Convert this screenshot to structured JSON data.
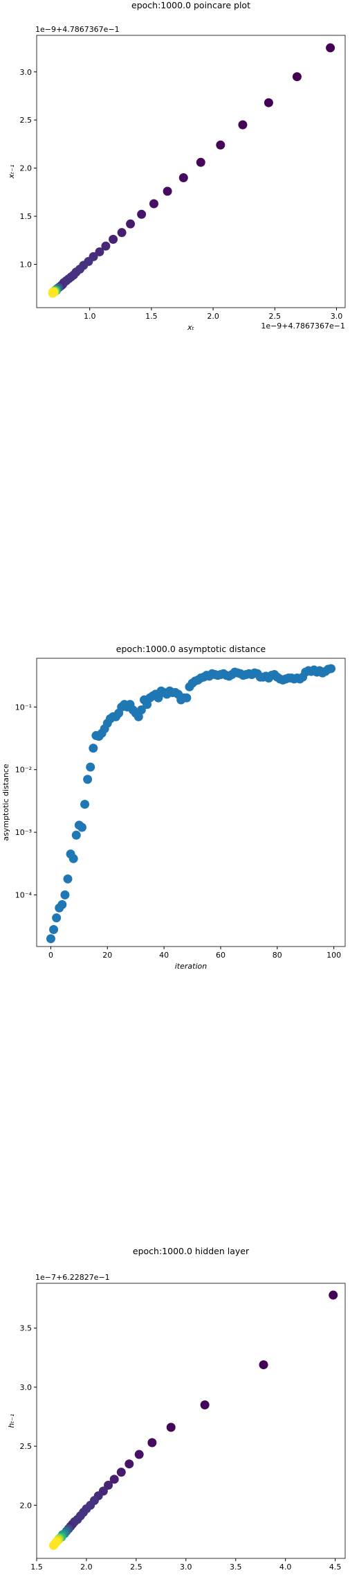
{
  "chart_data": [
    {
      "type": "scatter",
      "title": "epoch:1000.0 poincare plot",
      "x_label": "xₜ",
      "y_label": "xₜ₋₁",
      "x_offset_label": "1e−9+4.7867367e−1",
      "y_offset_label": "1e−9+4.7867367e−1",
      "x": [
        2.95,
        2.68,
        2.45,
        2.24,
        2.06,
        1.9,
        1.76,
        1.63,
        1.52,
        1.42,
        1.33,
        1.26,
        1.19,
        1.13,
        1.08,
        1.03,
        0.99,
        0.95,
        0.92,
        0.89,
        0.87,
        0.85,
        0.83,
        0.81,
        0.79,
        0.78,
        0.77,
        0.76,
        0.75,
        0.74,
        0.73,
        0.73,
        0.72,
        0.72,
        0.71,
        0.71,
        0.71,
        0.7,
        0.7,
        0.7
      ],
      "values": [
        3.25,
        2.95,
        2.68,
        2.45,
        2.24,
        2.06,
        1.9,
        1.76,
        1.63,
        1.52,
        1.42,
        1.33,
        1.26,
        1.19,
        1.13,
        1.08,
        1.03,
        0.99,
        0.95,
        0.92,
        0.89,
        0.87,
        0.85,
        0.83,
        0.81,
        0.79,
        0.78,
        0.77,
        0.76,
        0.75,
        0.74,
        0.73,
        0.73,
        0.72,
        0.72,
        0.71,
        0.71,
        0.71,
        0.7,
        0.7
      ],
      "colors": [
        "#440154",
        "#440154",
        "#440154",
        "#45065a",
        "#45065a",
        "#45065a",
        "#460b5e",
        "#460b5e",
        "#461163",
        "#471567",
        "#471a6b",
        "#481e70",
        "#482374",
        "#482777",
        "#472b7a",
        "#472e7c",
        "#46327e",
        "#46327e",
        "#46327e",
        "#46327e",
        "#46327e",
        "#46327e",
        "#46327e",
        "#46327e",
        "#46327e",
        "#46327e",
        "#46327e",
        "#482878",
        "#3e4989",
        "#31688e",
        "#26828e",
        "#1f9e89",
        "#35b779",
        "#6ece58",
        "#b5de2b",
        "#dde318",
        "#fde725",
        "#fde725",
        "#fde725",
        "#fde725"
      ],
      "xlim": [
        0.57,
        3.07
      ],
      "ylim": [
        0.55,
        3.38
      ],
      "xticks": [
        {
          "value": 1,
          "label": "1.0"
        },
        1.5,
        {
          "value": 2,
          "label": "2.0"
        },
        2.5,
        {
          "value": 3,
          "label": "3.0"
        }
      ],
      "yticks": [
        {
          "value": 1,
          "label": "1.0"
        },
        1.5,
        {
          "value": 2,
          "label": "2.0"
        },
        2.5,
        {
          "value": 3,
          "label": "3.0"
        }
      ]
    },
    {
      "type": "scatter",
      "title": "epoch:1000.0 asymptotic distance",
      "x_label": "iteration",
      "y_label": "asymptotic distance",
      "y_log": true,
      "color": "#1f77b4",
      "x": [
        0,
        1,
        2,
        3,
        4,
        5,
        6,
        7,
        8,
        9,
        10,
        11,
        12,
        13,
        14,
        15,
        16,
        17,
        18,
        19,
        20,
        21,
        22,
        23,
        24,
        25,
        26,
        27,
        28,
        29,
        30,
        31,
        32,
        33,
        34,
        35,
        36,
        37,
        38,
        39,
        40,
        41,
        42,
        43,
        44,
        45,
        46,
        47,
        48,
        49,
        50,
        51,
        52,
        53,
        54,
        55,
        56,
        57,
        58,
        59,
        60,
        61,
        62,
        63,
        64,
        65,
        66,
        67,
        68,
        69,
        70,
        71,
        72,
        73,
        74,
        75,
        76,
        77,
        78,
        79,
        80,
        81,
        82,
        83,
        84,
        85,
        86,
        87,
        88,
        89,
        90,
        91,
        92,
        93,
        94,
        95,
        96,
        97,
        98,
        99
      ],
      "values": [
        2e-05,
        2.8e-05,
        4.3e-05,
        6.2e-05,
        7e-05,
        0.0001,
        0.00018,
        0.00045,
        0.00038,
        0.0009,
        0.0013,
        0.0012,
        0.0028,
        0.007,
        0.011,
        0.022,
        0.035,
        0.034,
        0.038,
        0.045,
        0.055,
        0.065,
        0.07,
        0.07,
        0.08,
        0.1,
        0.11,
        0.1,
        0.11,
        0.09,
        0.08,
        0.07,
        0.09,
        0.13,
        0.11,
        0.14,
        0.15,
        0.16,
        0.14,
        0.18,
        0.17,
        0.16,
        0.18,
        0.17,
        0.17,
        0.16,
        0.13,
        0.14,
        0.14,
        0.21,
        0.24,
        0.26,
        0.27,
        0.29,
        0.3,
        0.32,
        0.31,
        0.34,
        0.33,
        0.32,
        0.33,
        0.34,
        0.32,
        0.31,
        0.33,
        0.36,
        0.35,
        0.34,
        0.32,
        0.33,
        0.34,
        0.33,
        0.35,
        0.34,
        0.3,
        0.3,
        0.31,
        0.29,
        0.32,
        0.33,
        0.3,
        0.28,
        0.27,
        0.28,
        0.29,
        0.29,
        0.28,
        0.29,
        0.28,
        0.3,
        0.36,
        0.38,
        0.37,
        0.39,
        0.36,
        0.38,
        0.35,
        0.37,
        0.4,
        0.41
      ],
      "xlim": [
        -5,
        104
      ],
      "ylim": [
        1.5e-05,
        0.6
      ],
      "xticks": [
        0,
        20,
        40,
        60,
        80,
        100
      ],
      "yticks": [
        {
          "value": 0.0001,
          "label": "10⁻⁴"
        },
        {
          "value": 0.001,
          "label": "10⁻³"
        },
        {
          "value": 0.01,
          "label": "10⁻²"
        },
        {
          "value": 0.1,
          "label": "10⁻¹"
        }
      ]
    },
    {
      "type": "scatter",
      "title": "epoch:1000.0 hidden layer",
      "x_label": "hₜ",
      "y_label": "hₜ₋₁",
      "x_offset_label": "1e−7+6.22827e−1",
      "y_offset_label": "1e−7+6.22827e−1",
      "x": [
        4.48,
        3.78,
        3.19,
        2.85,
        2.66,
        2.53,
        2.43,
        2.35,
        2.28,
        2.22,
        2.17,
        2.12,
        2.08,
        2.04,
        2.0,
        1.97,
        1.94,
        1.91,
        1.88,
        1.86,
        1.84,
        1.82,
        1.8,
        1.78,
        1.76,
        1.75,
        1.73,
        1.72,
        1.71,
        1.7,
        1.69,
        1.68,
        1.67
      ],
      "values": [
        3.78,
        3.19,
        2.85,
        2.66,
        2.53,
        2.43,
        2.35,
        2.28,
        2.22,
        2.17,
        2.12,
        2.08,
        2.04,
        2.0,
        1.97,
        1.94,
        1.91,
        1.88,
        1.86,
        1.84,
        1.82,
        1.8,
        1.78,
        1.76,
        1.75,
        1.73,
        1.72,
        1.71,
        1.7,
        1.69,
        1.68,
        1.67,
        1.66
      ],
      "colors": [
        "#440154",
        "#440154",
        "#45065a",
        "#45065a",
        "#460b5e",
        "#461163",
        "#471567",
        "#471a6b",
        "#481e70",
        "#482374",
        "#482777",
        "#472b7a",
        "#46327e",
        "#46327e",
        "#46327e",
        "#46327e",
        "#46327e",
        "#46327e",
        "#46327e",
        "#46327e",
        "#482878",
        "#3e4989",
        "#31688e",
        "#26828e",
        "#1f9e89",
        "#35b779",
        "#6ece58",
        "#b5de2b",
        "#dde318",
        "#fde725",
        "#fde725",
        "#fde725",
        "#fde725"
      ],
      "xlim": [
        1.5,
        4.6
      ],
      "ylim": [
        1.55,
        3.88
      ],
      "xticks": [
        1.5,
        {
          "value": 2,
          "label": "2.0"
        },
        2.5,
        {
          "value": 3,
          "label": "3.0"
        },
        3.5,
        {
          "value": 4,
          "label": "4.0"
        },
        4.5
      ],
      "yticks": [
        {
          "value": 2,
          "label": "2.0"
        },
        2.5,
        {
          "value": 3,
          "label": "3.0"
        },
        3.5
      ]
    }
  ]
}
